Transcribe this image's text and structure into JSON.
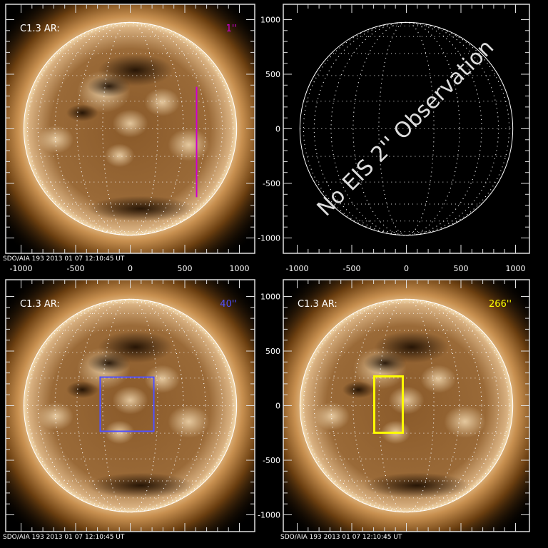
{
  "chart_data": [
    {
      "type": "image",
      "panel": "top-left",
      "label": "C1.3 AR:",
      "size_label": "1''",
      "accent": "#d000d0",
      "overlay": {
        "kind": "line",
        "x": 608,
        "y": [
          -627,
          385
        ]
      },
      "footer": "SDO/AIA 193   2013 01 07 12:10:45 UT",
      "xticks": [
        "-1000",
        "-500",
        "0",
        "500",
        "1000"
      ],
      "show_xticks": true,
      "show_yticks": false
    },
    {
      "type": "grid",
      "panel": "top-right",
      "message": "No EIS 2'' Observation",
      "xticks": [
        "-1000",
        "-500",
        "0",
        "500",
        "1000"
      ],
      "yticks": [
        "1000",
        "500",
        "0",
        "-500",
        "-1000"
      ],
      "show_xticks": true,
      "show_yticks": true
    },
    {
      "type": "image",
      "panel": "bottom-left",
      "label": "C1.3 AR:",
      "size_label": "40''",
      "accent": "#5050ff",
      "overlay": {
        "kind": "box",
        "x": [
          -275,
          216
        ],
        "y": [
          -235,
          261
        ]
      },
      "footer": "SDO/AIA 193   2013 01 07 12:10:45 UT",
      "show_xticks": false,
      "show_yticks": false
    },
    {
      "type": "image",
      "panel": "bottom-right",
      "label": "C1.3 AR:",
      "size_label": "266''",
      "accent": "#ffff00",
      "overlay": {
        "kind": "box",
        "x": [
          -294,
          -33
        ],
        "y": [
          -248,
          268
        ]
      },
      "footer": "SDO/AIA 193   2013 01 07 12:10:45 UT",
      "yticks": [
        "1000",
        "500",
        "0",
        "-500",
        "-1000"
      ],
      "show_xticks": false,
      "show_yticks": true
    }
  ],
  "axis_range": [
    -1128,
    1128
  ],
  "solar_radius": 975
}
